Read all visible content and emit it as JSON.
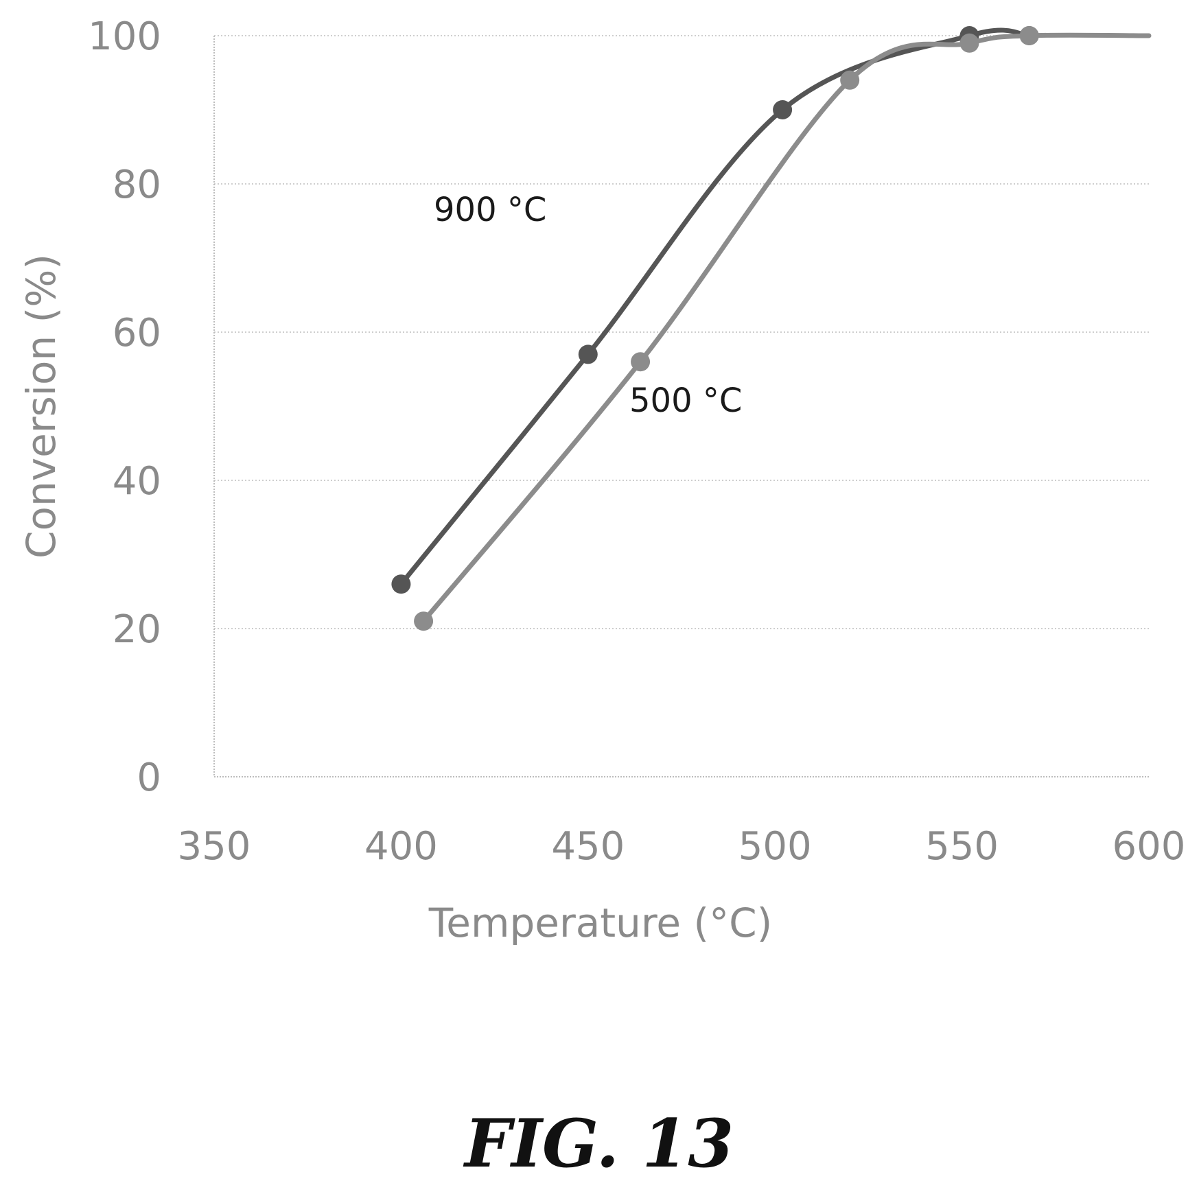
{
  "figure_caption": "FIG. 13",
  "chart_data": {
    "type": "line",
    "title": "",
    "xlabel": "Temperature (°C)",
    "ylabel": "Conversion (%)",
    "xlim": [
      350,
      600
    ],
    "ylim": [
      0,
      100
    ],
    "xticks": [
      350,
      400,
      450,
      500,
      550,
      600
    ],
    "yticks": [
      0,
      20,
      40,
      60,
      80,
      100
    ],
    "grid": true,
    "series": [
      {
        "name": "900 °C",
        "color": "#555555",
        "x": [
          400,
          450,
          502,
          552,
          568
        ],
        "y": [
          26,
          57,
          90,
          100,
          100
        ]
      },
      {
        "name": "500 °C",
        "color": "#8c8c8c",
        "x": [
          406,
          464,
          520,
          552,
          568,
          600
        ],
        "y": [
          21,
          56,
          94,
          99,
          100,
          100
        ]
      }
    ]
  }
}
